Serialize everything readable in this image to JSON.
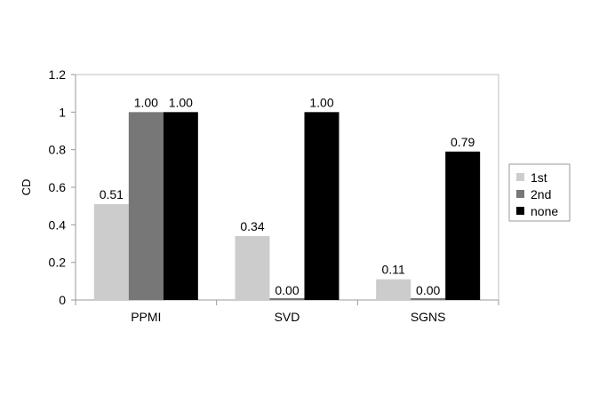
{
  "chart_data": {
    "type": "bar",
    "categories": [
      "PPMI",
      "SVD",
      "SGNS"
    ],
    "series": [
      {
        "name": "1st",
        "values": [
          0.51,
          0.34,
          0.11
        ],
        "labels": [
          "0.51",
          "0.34",
          "0.11"
        ],
        "color": "#cccccc"
      },
      {
        "name": "2nd",
        "values": [
          1.0,
          0.0,
          0.0
        ],
        "labels": [
          "1.00",
          "0.00",
          "0.00"
        ],
        "color": "#777777"
      },
      {
        "name": "none",
        "values": [
          1.0,
          1.0,
          0.79
        ],
        "labels": [
          "1.00",
          "1.00",
          "0.79"
        ],
        "color": "#000000"
      }
    ],
    "title": "",
    "xlabel": "",
    "ylabel": "CD",
    "ylim": [
      0,
      1.2
    ],
    "yticks": [
      0,
      0.2,
      0.4,
      0.6,
      0.8,
      1,
      1.2
    ],
    "ytick_labels": [
      "0",
      "0.2",
      "0.4",
      "0.6",
      "0.8",
      "1",
      "1.2"
    ],
    "grid": false,
    "legend_position": "right"
  }
}
